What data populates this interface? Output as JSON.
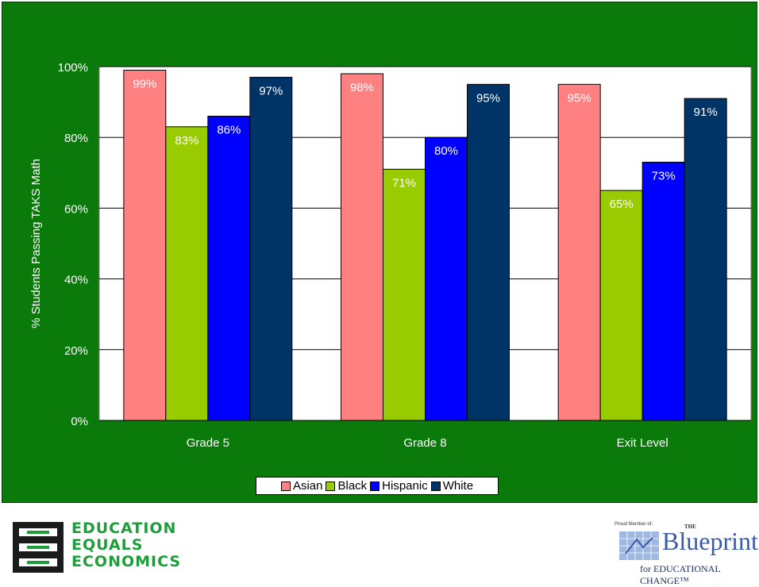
{
  "chart_data": {
    "type": "bar",
    "title": "",
    "xlabel": "",
    "ylabel": "% Students Passing TAKS Math",
    "categories": [
      "Grade 5",
      "Grade 8",
      "Exit Level"
    ],
    "ylim": [
      0,
      100
    ],
    "yticks": [
      "0%",
      "20%",
      "40%",
      "60%",
      "80%",
      "100%"
    ],
    "ytick_values": [
      0,
      20,
      40,
      60,
      80,
      100
    ],
    "grid": true,
    "legend_position": "bottom",
    "series": [
      {
        "name": "Asian",
        "color": "#ff8080",
        "values": [
          99,
          98,
          95
        ],
        "labels": [
          "99%",
          "98%",
          "95%"
        ],
        "label_color": "#ffffff"
      },
      {
        "name": "Black",
        "color": "#99cc00",
        "values": [
          83,
          71,
          65
        ],
        "labels": [
          "83%",
          "71%",
          "65%"
        ],
        "label_color": "#ffffff"
      },
      {
        "name": "Hispanic",
        "color": "#0000ff",
        "values": [
          86,
          80,
          73
        ],
        "labels": [
          "86%",
          "80%",
          "73%"
        ],
        "label_color": "#ffffff"
      },
      {
        "name": "White",
        "color": "#003366",
        "values": [
          97,
          95,
          91
        ],
        "labels": [
          "97%",
          "95%",
          "91%"
        ],
        "label_color": "#ffffff"
      }
    ]
  },
  "branding": {
    "left_logo_lines": [
      "EDUCATION",
      "EQUALS",
      "ECONOMICS"
    ],
    "right_logo": {
      "caption": "Proud Member of:",
      "the": "THE",
      "name": "Blueprint",
      "tagline": "for EDUCATIONAL CHANGE™"
    }
  },
  "colors": {
    "panel_background": "#0a7a0a",
    "plot_background": "#ffffff",
    "axis_text": "#ffffff"
  }
}
